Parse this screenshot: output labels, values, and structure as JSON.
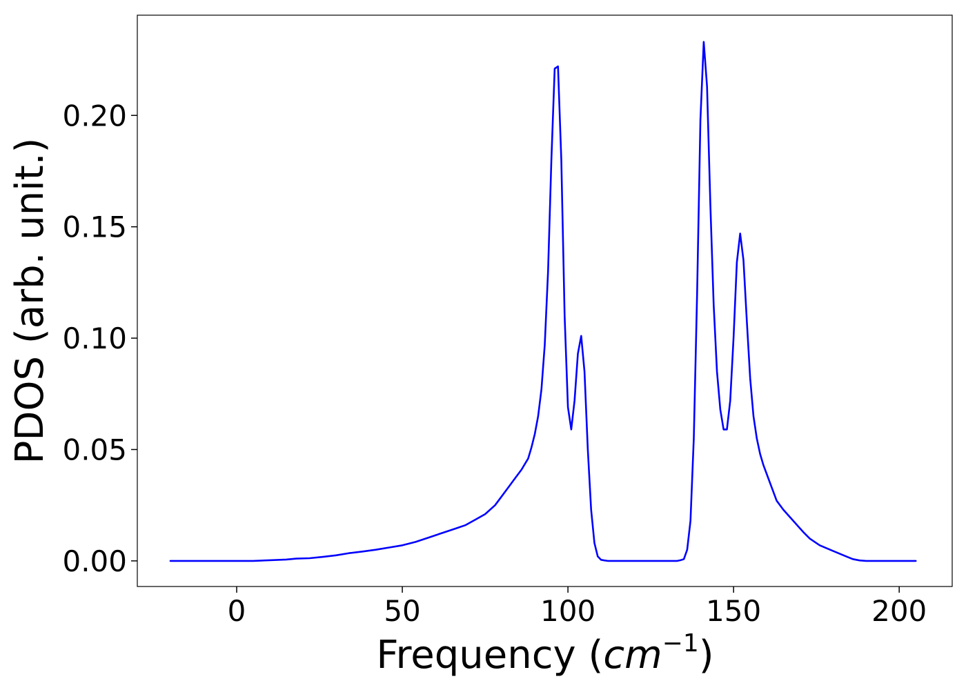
{
  "chart_data": {
    "type": "line",
    "xlabel_text": "Frequency (",
    "xlabel_math": "cm",
    "xlabel_exp": "−1",
    "xlabel_close": ")",
    "ylabel": "PDOS (arb. unit.)",
    "xlim": [
      -30,
      216
    ],
    "ylim": [
      -0.0115,
      0.245
    ],
    "xticks": [
      0,
      50,
      100,
      150,
      200
    ],
    "xtick_labels": [
      "0",
      "50",
      "100",
      "150",
      "200"
    ],
    "yticks": [
      0.0,
      0.05,
      0.1,
      0.15,
      0.2
    ],
    "ytick_labels": [
      "0.00",
      "0.05",
      "0.10",
      "0.15",
      "0.20"
    ],
    "grid": false,
    "series": [
      {
        "color": "#0000ff",
        "x": [
          -20,
          0,
          5,
          10,
          15,
          18,
          22,
          26,
          30,
          34,
          38,
          42,
          46,
          50,
          54,
          58,
          62,
          66,
          69,
          72,
          75,
          78,
          80,
          82,
          84,
          86,
          88,
          89,
          90,
          91,
          92,
          93,
          94,
          95,
          96,
          97,
          98,
          99,
          100,
          101,
          102,
          103,
          104,
          105,
          106,
          107,
          108,
          109,
          110,
          111,
          112,
          113,
          115,
          120,
          125,
          130,
          133,
          134,
          135,
          136,
          137,
          138,
          139,
          140,
          141,
          142,
          143,
          144,
          145,
          146,
          147,
          148,
          149,
          150,
          151,
          152,
          153,
          154,
          155,
          156,
          157,
          158,
          159,
          160,
          161,
          162,
          163,
          165,
          168,
          171,
          173,
          176,
          180,
          184,
          186,
          188,
          190,
          195,
          205
        ],
        "y": [
          0.0,
          0.0,
          0.0,
          0.0003,
          0.0006,
          0.001,
          0.0012,
          0.0018,
          0.0025,
          0.0035,
          0.0042,
          0.005,
          0.006,
          0.007,
          0.0085,
          0.0105,
          0.0125,
          0.0145,
          0.016,
          0.0185,
          0.021,
          0.025,
          0.029,
          0.033,
          0.037,
          0.041,
          0.046,
          0.051,
          0.057,
          0.065,
          0.077,
          0.097,
          0.13,
          0.18,
          0.221,
          0.222,
          0.18,
          0.11,
          0.069,
          0.059,
          0.072,
          0.093,
          0.101,
          0.085,
          0.05,
          0.023,
          0.008,
          0.002,
          0.0005,
          0.0002,
          0.0,
          0.0,
          0.0,
          0.0,
          0.0,
          0.0,
          0.0,
          0.0003,
          0.0008,
          0.005,
          0.018,
          0.055,
          0.12,
          0.198,
          0.233,
          0.213,
          0.16,
          0.115,
          0.085,
          0.068,
          0.059,
          0.059,
          0.072,
          0.1,
          0.134,
          0.147,
          0.135,
          0.108,
          0.082,
          0.065,
          0.055,
          0.048,
          0.043,
          0.039,
          0.035,
          0.031,
          0.027,
          0.023,
          0.018,
          0.013,
          0.01,
          0.007,
          0.0045,
          0.002,
          0.0008,
          0.0002,
          0.0,
          0.0,
          0.0
        ]
      }
    ]
  }
}
